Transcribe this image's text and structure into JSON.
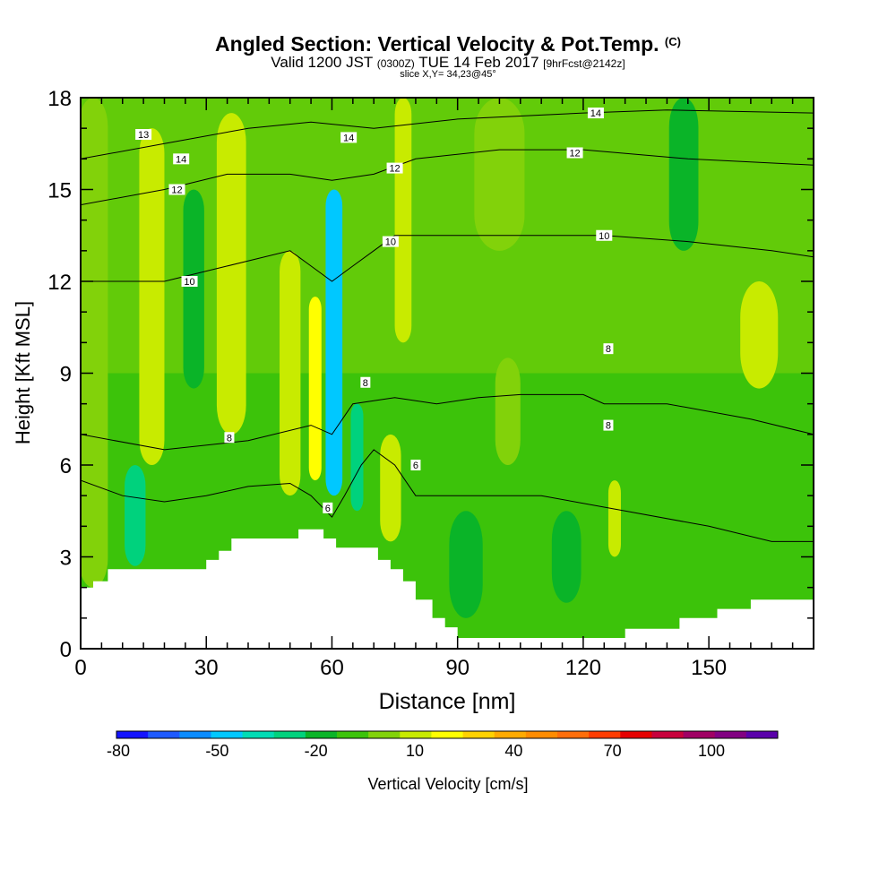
{
  "chart_data": {
    "type": "heatmap",
    "title": "Angled Section: Vertical Velocity & Pot.Temp.",
    "title_suffix": "(C)",
    "subtitle": {
      "valid": "Valid 1200 JST",
      "utc": "(0300Z)",
      "date": "TUE 14 Feb 2017",
      "forecast": "[9hrFcst@2142z]"
    },
    "slice_note": "slice X,Y= 34,23@45°",
    "xlabel": "Distance [nm]",
    "ylabel": "Height [Kft MSL]",
    "xlim": [
      0,
      175
    ],
    "ylim": [
      0,
      18
    ],
    "x_ticks": [
      0,
      30,
      60,
      90,
      120,
      150
    ],
    "y_ticks": [
      0,
      3,
      6,
      9,
      12,
      15,
      18
    ],
    "colorbar": {
      "label": "Vertical Velocity [cm/s]",
      "ticks": [
        -80,
        -50,
        -20,
        10,
        40,
        70,
        100
      ],
      "colors": [
        "#1414ff",
        "#1e5aff",
        "#0a8cff",
        "#00c8ff",
        "#00dcb4",
        "#00d27d",
        "#0ab428",
        "#3cc30a",
        "#82d20a",
        "#c8eb00",
        "#ffff00",
        "#ffd200",
        "#ffaa00",
        "#ff8c00",
        "#ff6e0a",
        "#ff3c00",
        "#e60000",
        "#c8003c",
        "#a00064",
        "#820082",
        "#5a00aa"
      ]
    },
    "velocity_columns": [
      {
        "x": 3,
        "w": 7,
        "y0": 2,
        "y1": 18,
        "color": "#82d20a"
      },
      {
        "x": 13,
        "w": 5,
        "y0": 2.7,
        "y1": 6,
        "color": "#00d27d"
      },
      {
        "x": 17,
        "w": 6,
        "y0": 6,
        "y1": 17,
        "color": "#c8eb00"
      },
      {
        "x": 27,
        "w": 5,
        "y0": 8.5,
        "y1": 15,
        "color": "#0ab428"
      },
      {
        "x": 36,
        "w": 7,
        "y0": 7,
        "y1": 17.5,
        "color": "#c8eb00"
      },
      {
        "x": 50,
        "w": 5,
        "y0": 5,
        "y1": 13,
        "color": "#c8eb00"
      },
      {
        "x": 56,
        "w": 3,
        "y0": 5.5,
        "y1": 11.5,
        "color": "#ffff00"
      },
      {
        "x": 60.5,
        "w": 4,
        "y0": 5,
        "y1": 15,
        "color": "#00c8ff"
      },
      {
        "x": 66,
        "w": 3,
        "y0": 4.5,
        "y1": 8,
        "color": "#00d27d"
      },
      {
        "x": 74,
        "w": 5,
        "y0": 3.5,
        "y1": 7,
        "color": "#c8eb00"
      },
      {
        "x": 77,
        "w": 4,
        "y0": 10,
        "y1": 18,
        "color": "#c8eb00"
      },
      {
        "x": 92,
        "w": 8,
        "y0": 1,
        "y1": 4.5,
        "color": "#0ab428"
      },
      {
        "x": 102,
        "w": 6,
        "y0": 6,
        "y1": 9.5,
        "color": "#82d20a"
      },
      {
        "x": 116,
        "w": 7,
        "y0": 1.5,
        "y1": 4.5,
        "color": "#0ab428"
      },
      {
        "x": 127.5,
        "w": 3,
        "y0": 3,
        "y1": 5.5,
        "color": "#c8eb00"
      },
      {
        "x": 144,
        "w": 7,
        "y0": 13,
        "y1": 18,
        "color": "#0ab428"
      },
      {
        "x": 162,
        "w": 9,
        "y0": 8.5,
        "y1": 12,
        "color": "#c8eb00"
      },
      {
        "x": 100,
        "w": 12,
        "y0": 13,
        "y1": 18,
        "color": "#82d20a"
      }
    ],
    "theta_contours": [
      {
        "level": 6,
        "points": [
          [
            0,
            5.5
          ],
          [
            10,
            5
          ],
          [
            20,
            4.8
          ],
          [
            30,
            5
          ],
          [
            40,
            5.3
          ],
          [
            50,
            5.4
          ],
          [
            55,
            5
          ],
          [
            60,
            4.3
          ],
          [
            63,
            5
          ],
          [
            67,
            6
          ],
          [
            70,
            6.5
          ],
          [
            75,
            6
          ],
          [
            80,
            5
          ],
          [
            85,
            5
          ],
          [
            95,
            5
          ],
          [
            110,
            5
          ],
          [
            130,
            4.5
          ],
          [
            150,
            4
          ],
          [
            165,
            3.5
          ],
          [
            175,
            3.5
          ]
        ]
      },
      {
        "level": 8,
        "points": [
          [
            0,
            7
          ],
          [
            20,
            6.5
          ],
          [
            40,
            6.8
          ],
          [
            55,
            7.3
          ],
          [
            60,
            7
          ],
          [
            65,
            8
          ],
          [
            75,
            8.2
          ],
          [
            85,
            8
          ],
          [
            95,
            8.2
          ],
          [
            105,
            8.3
          ],
          [
            120,
            8.3
          ],
          [
            125,
            8
          ],
          [
            140,
            8
          ],
          [
            160,
            7.5
          ],
          [
            175,
            7
          ]
        ]
      },
      {
        "level": 10,
        "points": [
          [
            0,
            12
          ],
          [
            20,
            12
          ],
          [
            35,
            12.5
          ],
          [
            50,
            13
          ],
          [
            55,
            12.5
          ],
          [
            60,
            12
          ],
          [
            65,
            12.5
          ],
          [
            70,
            13
          ],
          [
            75,
            13.5
          ],
          [
            85,
            13.5
          ],
          [
            100,
            13.5
          ],
          [
            125,
            13.5
          ],
          [
            145,
            13.3
          ],
          [
            165,
            13
          ],
          [
            175,
            12.8
          ]
        ]
      },
      {
        "level": 12,
        "points": [
          [
            0,
            14.5
          ],
          [
            20,
            15
          ],
          [
            35,
            15.5
          ],
          [
            50,
            15.5
          ],
          [
            60,
            15.3
          ],
          [
            70,
            15.5
          ],
          [
            80,
            16
          ],
          [
            100,
            16.3
          ],
          [
            120,
            16.3
          ],
          [
            145,
            16
          ],
          [
            175,
            15.8
          ]
        ]
      },
      {
        "level": 14,
        "points": [
          [
            0,
            16
          ],
          [
            20,
            16.5
          ],
          [
            40,
            17
          ],
          [
            55,
            17.2
          ],
          [
            70,
            17
          ],
          [
            90,
            17.3
          ],
          [
            120,
            17.5
          ],
          [
            140,
            17.6
          ],
          [
            175,
            17.5
          ]
        ]
      }
    ],
    "contour_labels": [
      {
        "x": 15,
        "y": 16.8,
        "text": "13"
      },
      {
        "x": 24,
        "y": 16,
        "text": "14"
      },
      {
        "x": 23,
        "y": 15,
        "text": "12"
      },
      {
        "x": 26,
        "y": 12,
        "text": "10"
      },
      {
        "x": 35.5,
        "y": 6.9,
        "text": "8"
      },
      {
        "x": 64,
        "y": 16.7,
        "text": "14"
      },
      {
        "x": 75,
        "y": 15.7,
        "text": "12"
      },
      {
        "x": 74,
        "y": 13.3,
        "text": "10"
      },
      {
        "x": 68,
        "y": 8.7,
        "text": "8"
      },
      {
        "x": 80,
        "y": 6,
        "text": "6"
      },
      {
        "x": 59,
        "y": 4.6,
        "text": "6"
      },
      {
        "x": 123,
        "y": 17.5,
        "text": "14"
      },
      {
        "x": 118,
        "y": 16.2,
        "text": "12"
      },
      {
        "x": 125,
        "y": 13.5,
        "text": "10"
      },
      {
        "x": 126,
        "y": 9.8,
        "text": "8"
      },
      {
        "x": 126,
        "y": 7.3,
        "text": "8"
      }
    ],
    "terrain": [
      [
        0,
        2
      ],
      [
        3,
        2
      ],
      [
        3,
        2.2
      ],
      [
        6.5,
        2.2
      ],
      [
        6.5,
        2.6
      ],
      [
        30,
        2.6
      ],
      [
        30,
        2.9
      ],
      [
        33,
        2.9
      ],
      [
        33,
        3.2
      ],
      [
        36,
        3.2
      ],
      [
        36,
        3.6
      ],
      [
        52,
        3.6
      ],
      [
        52,
        3.9
      ],
      [
        58,
        3.9
      ],
      [
        58,
        3.6
      ],
      [
        61,
        3.6
      ],
      [
        61,
        3.3
      ],
      [
        71,
        3.3
      ],
      [
        71,
        2.9
      ],
      [
        74,
        2.9
      ],
      [
        74,
        2.6
      ],
      [
        77,
        2.6
      ],
      [
        77,
        2.2
      ],
      [
        80,
        2.2
      ],
      [
        80,
        1.6
      ],
      [
        84,
        1.6
      ],
      [
        84,
        1.0
      ],
      [
        87,
        1.0
      ],
      [
        87,
        0.7
      ],
      [
        90,
        0.7
      ],
      [
        90,
        0.35
      ],
      [
        130,
        0.35
      ],
      [
        130,
        0.65
      ],
      [
        143,
        0.65
      ],
      [
        143,
        1.0
      ],
      [
        152,
        1.0
      ],
      [
        152,
        1.3
      ],
      [
        160,
        1.3
      ],
      [
        160,
        1.6
      ],
      [
        175,
        1.6
      ]
    ]
  }
}
